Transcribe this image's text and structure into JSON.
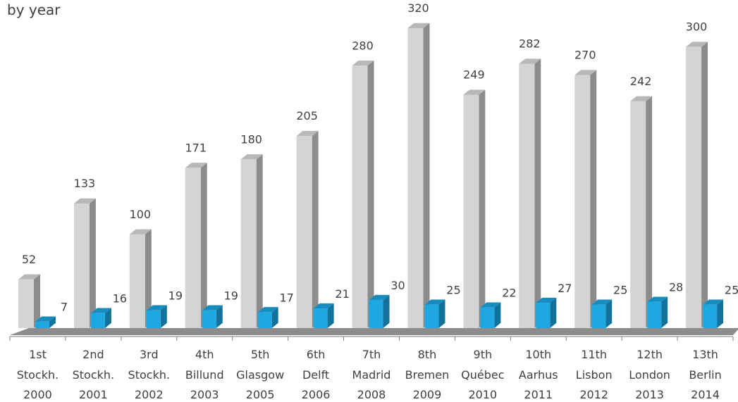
{
  "chart_data": {
    "type": "bar",
    "title": "by year",
    "categories": [
      [
        "1st",
        "Stockh.",
        "2000"
      ],
      [
        "2nd",
        "Stockh.",
        "2001"
      ],
      [
        "3rd",
        "Stockh.",
        "2002"
      ],
      [
        "4th",
        "Billund",
        "2003"
      ],
      [
        "5th",
        "Glasgow",
        "2005"
      ],
      [
        "6th",
        "Delft",
        "2006"
      ],
      [
        "7th",
        "Madrid",
        "2008"
      ],
      [
        "8th",
        "Bremen",
        "2009"
      ],
      [
        "9th",
        "Québec",
        "2010"
      ],
      [
        "10th",
        "Aarhus",
        "2011"
      ],
      [
        "11th",
        "Lisbon",
        "2012"
      ],
      [
        "12th",
        "London",
        "2013"
      ],
      [
        "13th",
        "Berlin",
        "2014"
      ]
    ],
    "series": [
      {
        "values": [
          52,
          133,
          100,
          171,
          180,
          205,
          280,
          320,
          249,
          282,
          270,
          242,
          300
        ],
        "color": "#d4d4d4",
        "side_color": "#8c8c8c",
        "top_color": "#b8b8b8"
      },
      {
        "values": [
          7,
          16,
          19,
          19,
          17,
          21,
          30,
          25,
          22,
          27,
          25,
          28,
          25
        ],
        "color": "#1fa7e1",
        "side_color": "#12729c",
        "top_color": "#178cbf"
      }
    ],
    "ylim": [
      0,
      320
    ],
    "grid": false,
    "legend": "none",
    "three_d": true
  }
}
